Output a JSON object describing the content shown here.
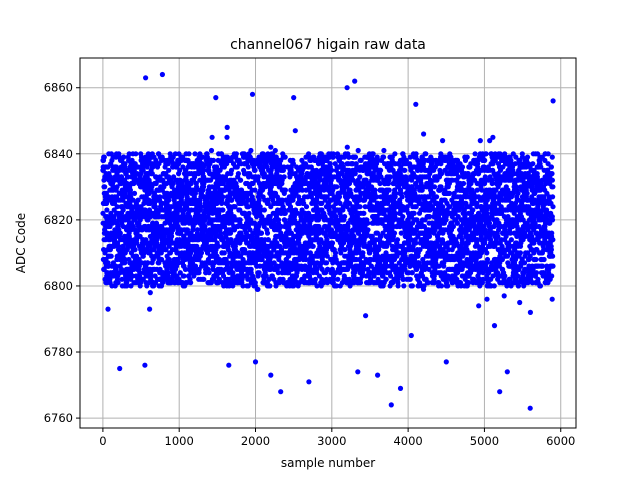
{
  "chart_data": {
    "type": "scatter",
    "title": "channel067 higain raw data",
    "xlabel": "sample number",
    "ylabel": "ADC Code",
    "xlim": [
      -300,
      6200
    ],
    "ylim": [
      6757,
      6869
    ],
    "xticks": [
      0,
      1000,
      2000,
      3000,
      4000,
      5000,
      6000
    ],
    "yticks": [
      6760,
      6780,
      6800,
      6820,
      6840,
      6860
    ],
    "grid": true,
    "marker_color": "#0000ff",
    "n_points": 5900,
    "core_band": [
      6800,
      6840
    ],
    "typical_mean": 6819,
    "outliers": [
      {
        "x": 560,
        "y": 6863
      },
      {
        "x": 780,
        "y": 6864
      },
      {
        "x": 3200,
        "y": 6860
      },
      {
        "x": 3300,
        "y": 6862
      },
      {
        "x": 1960,
        "y": 6858
      },
      {
        "x": 2500,
        "y": 6857
      },
      {
        "x": 1480,
        "y": 6857
      },
      {
        "x": 5900,
        "y": 6856
      },
      {
        "x": 4100,
        "y": 6855
      },
      {
        "x": 5600,
        "y": 6763
      },
      {
        "x": 3780,
        "y": 6764
      },
      {
        "x": 5200,
        "y": 6768
      },
      {
        "x": 2330,
        "y": 6768
      },
      {
        "x": 3900,
        "y": 6769
      },
      {
        "x": 2700,
        "y": 6771
      },
      {
        "x": 220,
        "y": 6775
      },
      {
        "x": 3340,
        "y": 6774
      },
      {
        "x": 3600,
        "y": 6773
      },
      {
        "x": 5300,
        "y": 6774
      },
      {
        "x": 2200,
        "y": 6773
      },
      {
        "x": 4500,
        "y": 6777
      },
      {
        "x": 1650,
        "y": 6776
      },
      {
        "x": 550,
        "y": 6776
      },
      {
        "x": 2000,
        "y": 6777
      }
    ]
  }
}
